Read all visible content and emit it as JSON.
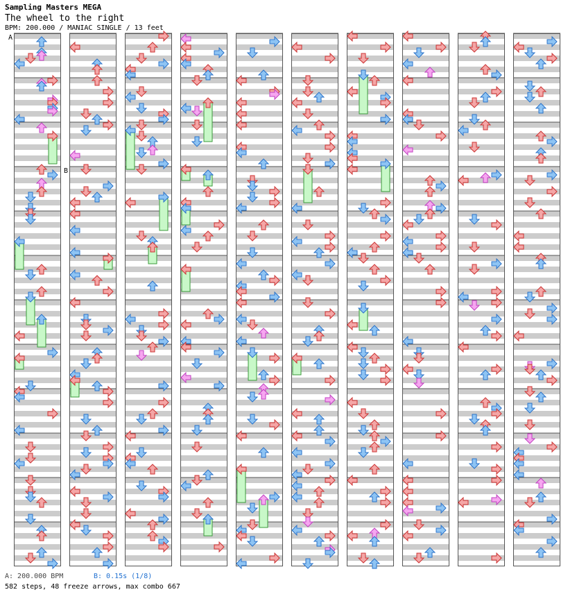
{
  "header": {
    "title": "Sampling Masters MEGA",
    "subtitle": "The wheel to the right",
    "meta": "BPM: 200.000 / MANIAC SINGLE / 13 feet"
  },
  "markers": {
    "a": "A",
    "b": "B"
  },
  "footer": {
    "bpm_marker": "A: 200.000 BPM",
    "stop_marker": "B: 0.15s (1/8)",
    "stats": "582 steps, 48 freeze arrows, max combo 667"
  },
  "colors": {
    "quarter_note": "#f4a6a6",
    "eighth_note": "#8ec4f4",
    "sixteenth_note": "#f6a6f0",
    "freeze": "#c8f8c8",
    "freeze_head": "#44cc44",
    "stripe": "#cccccc"
  },
  "icons": [
    "arrow-left-icon",
    "arrow-down-icon",
    "arrow-up-icon",
    "arrow-right-icon",
    "freeze-arrow-icon"
  ],
  "chart_data": {
    "type": "step-chart",
    "columns": 10,
    "measures_per_column": 12,
    "total_measures": 120,
    "lanes": [
      "left",
      "down",
      "up",
      "right"
    ],
    "bpm": 200.0,
    "stop_seconds": 0.15,
    "difficulty": "MANIAC",
    "style": "SINGLE",
    "feet": 13,
    "steps": 582,
    "freeze_arrows": 48,
    "max_combo": 667
  }
}
